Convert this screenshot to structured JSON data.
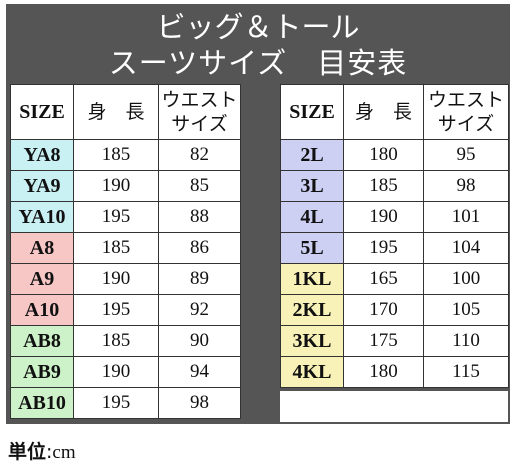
{
  "title": {
    "line1": "ビッグ＆トール",
    "line2": "スーツサイズ　目安表"
  },
  "headers": {
    "size": "SIZE",
    "height": "身　長",
    "waist_1": "ウエスト",
    "waist_2": "サイズ"
  },
  "left_rows": [
    {
      "size": "YA8",
      "height": "185",
      "waist": "82",
      "group": "ya"
    },
    {
      "size": "YA9",
      "height": "190",
      "waist": "85",
      "group": "ya"
    },
    {
      "size": "YA10",
      "height": "195",
      "waist": "88",
      "group": "ya"
    },
    {
      "size": "A8",
      "height": "185",
      "waist": "86",
      "group": "a"
    },
    {
      "size": "A9",
      "height": "190",
      "waist": "89",
      "group": "a"
    },
    {
      "size": "A10",
      "height": "195",
      "waist": "92",
      "group": "a"
    },
    {
      "size": "AB8",
      "height": "185",
      "waist": "90",
      "group": "ab"
    },
    {
      "size": "AB9",
      "height": "190",
      "waist": "94",
      "group": "ab"
    },
    {
      "size": "AB10",
      "height": "195",
      "waist": "98",
      "group": "ab"
    }
  ],
  "right_rows": [
    {
      "size": "2L",
      "height": "180",
      "waist": "95",
      "group": "l"
    },
    {
      "size": "3L",
      "height": "185",
      "waist": "98",
      "group": "l"
    },
    {
      "size": "4L",
      "height": "190",
      "waist": "101",
      "group": "l"
    },
    {
      "size": "5L",
      "height": "195",
      "waist": "104",
      "group": "l"
    },
    {
      "size": "1KL",
      "height": "165",
      "waist": "100",
      "group": "kl"
    },
    {
      "size": "2KL",
      "height": "170",
      "waist": "105",
      "group": "kl"
    },
    {
      "size": "3KL",
      "height": "175",
      "waist": "110",
      "group": "kl"
    },
    {
      "size": "4KL",
      "height": "180",
      "waist": "115",
      "group": "kl"
    }
  ],
  "unit": {
    "label": "単位",
    "sep": ":",
    "value": "cm"
  },
  "colors": {
    "frame": "#555555",
    "ya": "#c9f1f4",
    "a": "#f6c7c5",
    "ab": "#cdf1c9",
    "l": "#cdd0f3",
    "kl": "#f8f2b8"
  }
}
